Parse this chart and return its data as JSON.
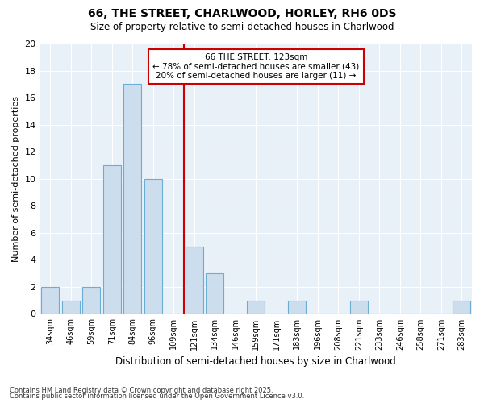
{
  "title1": "66, THE STREET, CHARLWOOD, HORLEY, RH6 0DS",
  "title2": "Size of property relative to semi-detached houses in Charlwood",
  "xlabel": "Distribution of semi-detached houses by size in Charlwood",
  "ylabel": "Number of semi-detached properties",
  "categories": [
    "34sqm",
    "46sqm",
    "59sqm",
    "71sqm",
    "84sqm",
    "96sqm",
    "109sqm",
    "121sqm",
    "134sqm",
    "146sqm",
    "159sqm",
    "171sqm",
    "183sqm",
    "196sqm",
    "208sqm",
    "221sqm",
    "233sqm",
    "246sqm",
    "258sqm",
    "271sqm",
    "283sqm"
  ],
  "values": [
    2,
    1,
    2,
    11,
    17,
    10,
    0,
    5,
    3,
    0,
    1,
    0,
    1,
    0,
    0,
    1,
    0,
    0,
    0,
    0,
    1
  ],
  "bar_color": "#ccdded",
  "bar_edge_color": "#6aaed6",
  "annotation_title": "66 THE STREET: 123sqm",
  "annotation_line1": "← 78% of semi-detached houses are smaller (43)",
  "annotation_line2": "20% of semi-detached houses are larger (11) →",
  "annotation_box_color": "#cc0000",
  "red_line_index": 7,
  "ylim": [
    0,
    20
  ],
  "yticks": [
    0,
    2,
    4,
    6,
    8,
    10,
    12,
    14,
    16,
    18,
    20
  ],
  "footer1": "Contains HM Land Registry data © Crown copyright and database right 2025.",
  "footer2": "Contains public sector information licensed under the Open Government Licence v3.0.",
  "bg_color": "#ffffff",
  "plot_bg_color": "#e8f0f8"
}
